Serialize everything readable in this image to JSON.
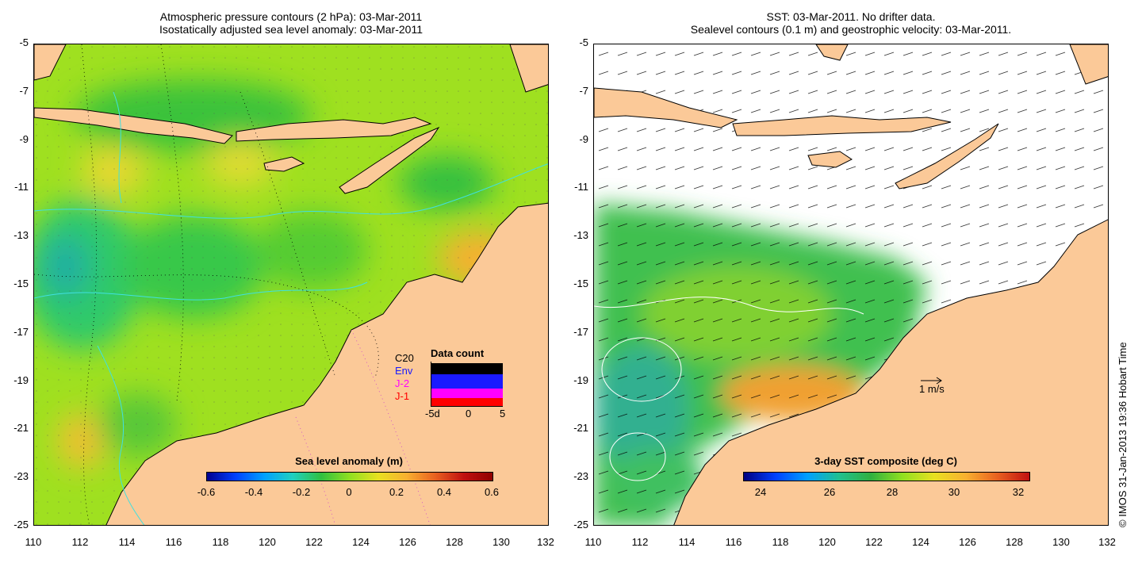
{
  "left_panel": {
    "title_line1": "Atmospheric pressure contours (2 hPa): 03-Mar-2011",
    "title_line2": "Isostatically adjusted sea level anomaly: 03-Mar-2011",
    "colorbar": {
      "title": "Sea level anomaly (m)",
      "ticks": [
        "-0.6",
        "-0.4",
        "-0.2",
        "0",
        "0.2",
        "0.4",
        "0.6"
      ]
    },
    "inset": {
      "title": "Data count",
      "legend": [
        "C20",
        "Env",
        "J-2",
        "J-1"
      ],
      "legend_colors": [
        "#000000",
        "#1a1aff",
        "#ff00ff",
        "#ff0000"
      ],
      "xticks": [
        "-5d",
        "0",
        "5"
      ]
    }
  },
  "right_panel": {
    "title_line1": "SST: 03-Mar-2011. No drifter data.",
    "title_line2": "Sealevel contours (0.1 m) and geostrophic velocity: 03-Mar-2011.",
    "colorbar": {
      "title": "3-day SST composite (deg C)",
      "ticks": [
        "24",
        "26",
        "28",
        "30",
        "32"
      ]
    },
    "velocity_scale": "1 m/s"
  },
  "axes": {
    "y_ticks": [
      "-5",
      "-7",
      "-9",
      "-11",
      "-13",
      "-15",
      "-17",
      "-19",
      "-21",
      "-23",
      "-25"
    ],
    "x_ticks": [
      "110",
      "112",
      "114",
      "116",
      "118",
      "120",
      "122",
      "124",
      "126",
      "128",
      "130",
      "132"
    ]
  },
  "credit": "© IMOS 31-Jan-2013 19:36 Hobart Time",
  "colors": {
    "land": "#fbc998",
    "coast": "#000000",
    "isobath": "#40e0e0"
  }
}
